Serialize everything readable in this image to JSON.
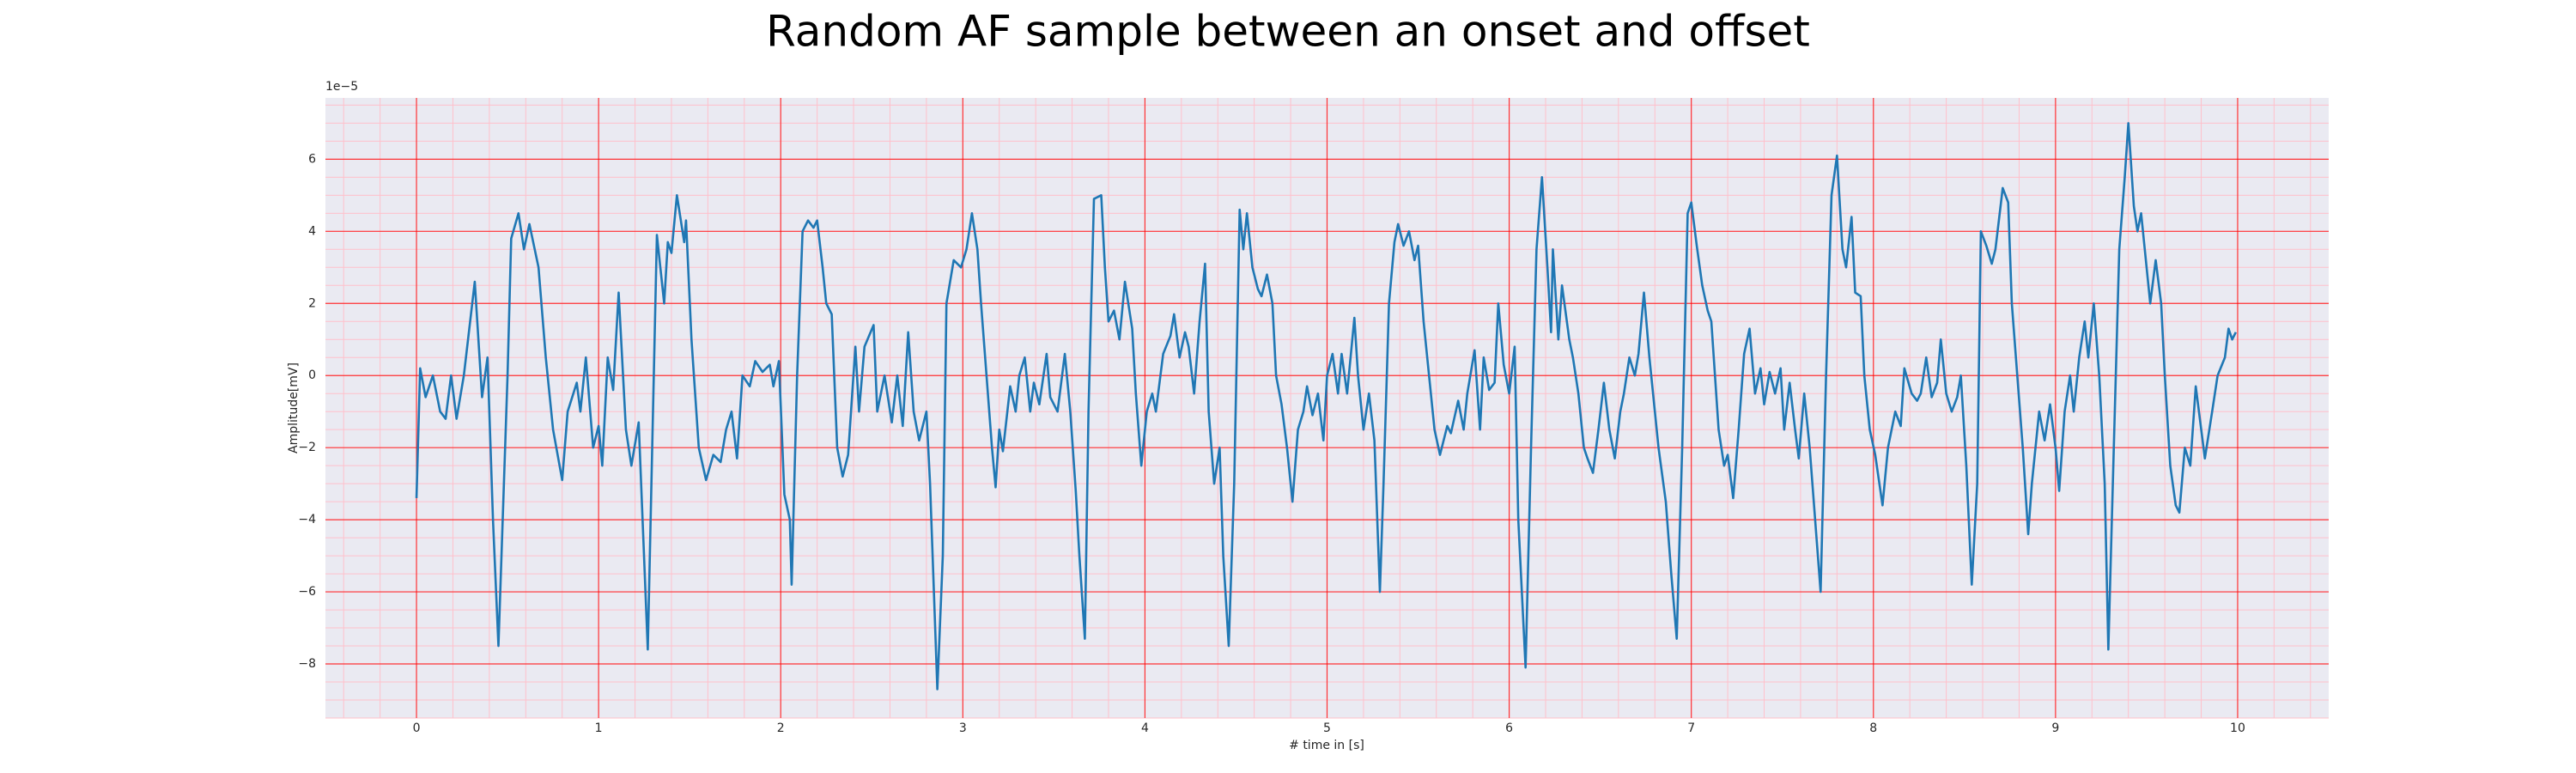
{
  "chart_data": {
    "type": "line",
    "title": "Random AF sample between an onset and offset",
    "x_label": "# time in [s]",
    "y_label": "Amplitude[mV]",
    "y_offset_label": "1e−5",
    "color": "#1f77b4",
    "grid": true,
    "minor_grid": true,
    "xlim": [
      -0.5,
      10.5
    ],
    "ylim": [
      -9.5,
      7.7
    ],
    "xticks": [
      0,
      1,
      2,
      3,
      4,
      5,
      6,
      7,
      8,
      9,
      10
    ],
    "yticks": [
      {
        "value": -8,
        "label": "−8"
      },
      {
        "value": -6,
        "label": "−6"
      },
      {
        "value": -4,
        "label": "−4"
      },
      {
        "value": -2,
        "label": "−2"
      },
      0,
      2,
      4,
      6
    ],
    "x": [
      0,
      0.02,
      0.05,
      0.09,
      0.13,
      0.16,
      0.19,
      0.22,
      0.26,
      0.32,
      0.36,
      0.39,
      0.42,
      0.45,
      0.5,
      0.52,
      0.56,
      0.59,
      0.62,
      0.67,
      0.71,
      0.75,
      0.8,
      0.83,
      0.88,
      0.9,
      0.93,
      0.97,
      1.0,
      1.02,
      1.05,
      1.08,
      1.11,
      1.15,
      1.18,
      1.22,
      1.27,
      1.29,
      1.32,
      1.36,
      1.38,
      1.4,
      1.43,
      1.47,
      1.48,
      1.51,
      1.55,
      1.59,
      1.63,
      1.67,
      1.7,
      1.73,
      1.76,
      1.79,
      1.83,
      1.86,
      1.9,
      1.94,
      1.96,
      1.99,
      2.02,
      2.05,
      2.06,
      2.09,
      2.12,
      2.15,
      2.18,
      2.2,
      2.23,
      2.25,
      2.28,
      2.31,
      2.34,
      2.37,
      2.41,
      2.43,
      2.46,
      2.51,
      2.53,
      2.57,
      2.61,
      2.64,
      2.67,
      2.7,
      2.73,
      2.76,
      2.8,
      2.82,
      2.86,
      2.89,
      2.91,
      2.95,
      2.99,
      3.02,
      3.05,
      3.08,
      3.1,
      3.13,
      3.16,
      3.18,
      3.2,
      3.22,
      3.26,
      3.29,
      3.31,
      3.34,
      3.37,
      3.39,
      3.42,
      3.46,
      3.48,
      3.52,
      3.56,
      3.59,
      3.62,
      3.64,
      3.67,
      3.69,
      3.72,
      3.76,
      3.78,
      3.8,
      3.83,
      3.86,
      3.89,
      3.93,
      3.95,
      3.98,
      4.01,
      4.04,
      4.06,
      4.1,
      4.14,
      4.16,
      4.19,
      4.22,
      4.24,
      4.27,
      4.3,
      4.33,
      4.35,
      4.38,
      4.41,
      4.43,
      4.46,
      4.49,
      4.52,
      4.54,
      4.56,
      4.59,
      4.62,
      4.64,
      4.67,
      4.7,
      4.72,
      4.75,
      4.78,
      4.81,
      4.84,
      4.87,
      4.89,
      4.92,
      4.95,
      4.98,
      5.0,
      5.03,
      5.06,
      5.08,
      5.11,
      5.15,
      5.17,
      5.2,
      5.23,
      5.26,
      5.29,
      5.31,
      5.34,
      5.37,
      5.39,
      5.42,
      5.45,
      5.48,
      5.5,
      5.53,
      5.56,
      5.59,
      5.62,
      5.66,
      5.68,
      5.72,
      5.75,
      5.77,
      5.81,
      5.84,
      5.86,
      5.89,
      5.92,
      5.94,
      5.97,
      6.0,
      6.03,
      6.05,
      6.09,
      6.12,
      6.15,
      6.18,
      6.21,
      6.23,
      6.24,
      6.27,
      6.29,
      6.33,
      6.35,
      6.38,
      6.41,
      6.43,
      6.46,
      6.49,
      6.52,
      6.55,
      6.58,
      6.61,
      6.63,
      6.66,
      6.69,
      6.71,
      6.74,
      6.77,
      6.8,
      6.82,
      6.86,
      6.89,
      6.92,
      6.95,
      6.98,
      7.0,
      7.03,
      7.06,
      7.09,
      7.11,
      7.15,
      7.18,
      7.2,
      7.23,
      7.26,
      7.29,
      7.32,
      7.35,
      7.38,
      7.4,
      7.43,
      7.46,
      7.49,
      7.51,
      7.54,
      7.57,
      7.59,
      7.62,
      7.65,
      7.68,
      7.71,
      7.74,
      7.77,
      7.8,
      7.83,
      7.85,
      7.88,
      7.9,
      7.93,
      7.95,
      7.98,
      8.01,
      8.05,
      8.08,
      8.12,
      8.15,
      8.17,
      8.21,
      8.24,
      8.26,
      8.29,
      8.32,
      8.35,
      8.37,
      8.4,
      8.43,
      8.46,
      8.48,
      8.51,
      8.54,
      8.57,
      8.59,
      8.62,
      8.65,
      8.67,
      8.71,
      8.74,
      8.76,
      8.79,
      8.82,
      8.85,
      8.87,
      8.91,
      8.94,
      8.97,
      9.0,
      9.02,
      9.05,
      9.08,
      9.1,
      9.13,
      9.16,
      9.18,
      9.21,
      9.24,
      9.27,
      9.29,
      9.32,
      9.35,
      9.38,
      9.4,
      9.43,
      9.45,
      9.47,
      9.49,
      9.52,
      9.55,
      9.58,
      9.6,
      9.63,
      9.66,
      9.68,
      9.71,
      9.74,
      9.77,
      9.8,
      9.82,
      9.86,
      9.89,
      9.93,
      9.95,
      9.97,
      9.99
    ],
    "values": [
      -3.4,
      0.2,
      -0.6,
      0,
      -1.0,
      -1.2,
      0,
      -1.2,
      0,
      2.6,
      -0.6,
      0.5,
      -4,
      -7.5,
      0,
      3.8,
      4.5,
      3.5,
      4.2,
      3.0,
      0.5,
      -1.5,
      -2.9,
      -1.0,
      -0.2,
      -1.0,
      0.5,
      -2.0,
      -1.4,
      -2.5,
      0.5,
      -0.4,
      2.3,
      -1.5,
      -2.5,
      -1.3,
      -7.6,
      -3,
      3.9,
      2.0,
      3.7,
      3.4,
      5.0,
      3.7,
      4.3,
      1.0,
      -2,
      -2.9,
      -2.2,
      -2.4,
      -1.5,
      -1.0,
      -2.3,
      0,
      -0.3,
      0.4,
      0.1,
      0.3,
      -0.3,
      0.4,
      -3.3,
      -4,
      -5.8,
      0,
      4.0,
      4.3,
      4.1,
      4.3,
      3.0,
      2.0,
      1.7,
      -2,
      -2.8,
      -2.2,
      0.8,
      -1,
      0.8,
      1.4,
      -1,
      0,
      -1.3,
      0,
      -1.4,
      1.2,
      -1.0,
      -1.8,
      -1.0,
      -3,
      -8.7,
      -5,
      2,
      3.2,
      3.0,
      3.5,
      4.5,
      3.5,
      2.0,
      0,
      -2,
      -3.1,
      -1.5,
      -2.1,
      -0.3,
      -1,
      0,
      0.5,
      -1,
      -0.2,
      -0.8,
      0.6,
      -0.6,
      -1.0,
      0.6,
      -1.0,
      -3.2,
      -5.0,
      -7.3,
      -1,
      4.9,
      5.0,
      3.0,
      1.5,
      1.8,
      1.0,
      2.6,
      1.3,
      -0.5,
      -2.5,
      -1.0,
      -0.5,
      -1,
      0.6,
      1.1,
      1.7,
      0.5,
      1.2,
      0.8,
      -0.5,
      1.5,
      3.1,
      -1,
      -3.0,
      -2.0,
      -5,
      -7.5,
      -3,
      4.6,
      3.5,
      4.5,
      3.0,
      2.4,
      2.2,
      2.8,
      2.0,
      0,
      -0.8,
      -2,
      -3.5,
      -1.5,
      -1,
      -0.3,
      -1.1,
      -0.5,
      -1.8,
      0,
      0.6,
      -0.5,
      0.6,
      -0.5,
      1.6,
      0,
      -1.5,
      -0.5,
      -1.8,
      -6,
      -3,
      2,
      3.7,
      4.2,
      3.6,
      4.0,
      3.2,
      3.6,
      1.5,
      0,
      -1.5,
      -2.2,
      -1.4,
      -1.6,
      -0.7,
      -1.5,
      -0.5,
      0.7,
      -1.5,
      0.5,
      -0.4,
      -0.2,
      2.0,
      0.3,
      -0.5,
      0.8,
      -4,
      -8.1,
      -2,
      3.5,
      5.5,
      3.0,
      1.2,
      3.5,
      1.0,
      2.5,
      1.0,
      0.5,
      -0.5,
      -2.0,
      -2.3,
      -2.7,
      -1.5,
      -0.2,
      -1.5,
      -2.3,
      -1,
      -0.5,
      0.5,
      0,
      0.6,
      2.3,
      0.5,
      -1.0,
      -2,
      -3.5,
      -5.5,
      -7.3,
      -2,
      4.5,
      4.8,
      3.6,
      2.5,
      1.8,
      1.5,
      -1.5,
      -2.5,
      -2.2,
      -3.4,
      -1.5,
      0.6,
      1.3,
      -0.5,
      0.2,
      -0.8,
      0.1,
      -0.5,
      0.2,
      -1.5,
      -0.2,
      -1.5,
      -2.3,
      -0.5,
      -2,
      -4,
      -6.0,
      0,
      5.0,
      6.1,
      3.5,
      3.0,
      4.4,
      2.3,
      2.2,
      0,
      -1.5,
      -2.2,
      -3.6,
      -2.0,
      -1.0,
      -1.4,
      0.2,
      -0.5,
      -0.7,
      -0.5,
      0.5,
      -0.6,
      -0.2,
      1.0,
      -0.5,
      -1.0,
      -0.6,
      0,
      -2.5,
      -5.8,
      -3,
      4.0,
      3.6,
      3.1,
      3.5,
      5.2,
      4.8,
      2.0,
      0,
      -2,
      -4.4,
      -3.0,
      -1.0,
      -1.8,
      -0.8,
      -2.0,
      -3.2,
      -1.0,
      0,
      -1.0,
      0.5,
      1.5,
      0.5,
      2.0,
      0,
      -3,
      -7.6,
      -2,
      3.5,
      5.5,
      7.0,
      4.7,
      4.0,
      4.5,
      3.5,
      2.0,
      3.2,
      2.0,
      0,
      -2.5,
      -3.6,
      -3.8,
      -2.0,
      -2.5,
      -0.3,
      -1.5,
      -2.3,
      -1.0,
      0,
      0.5,
      1.3,
      1.0,
      1.2
    ]
  }
}
